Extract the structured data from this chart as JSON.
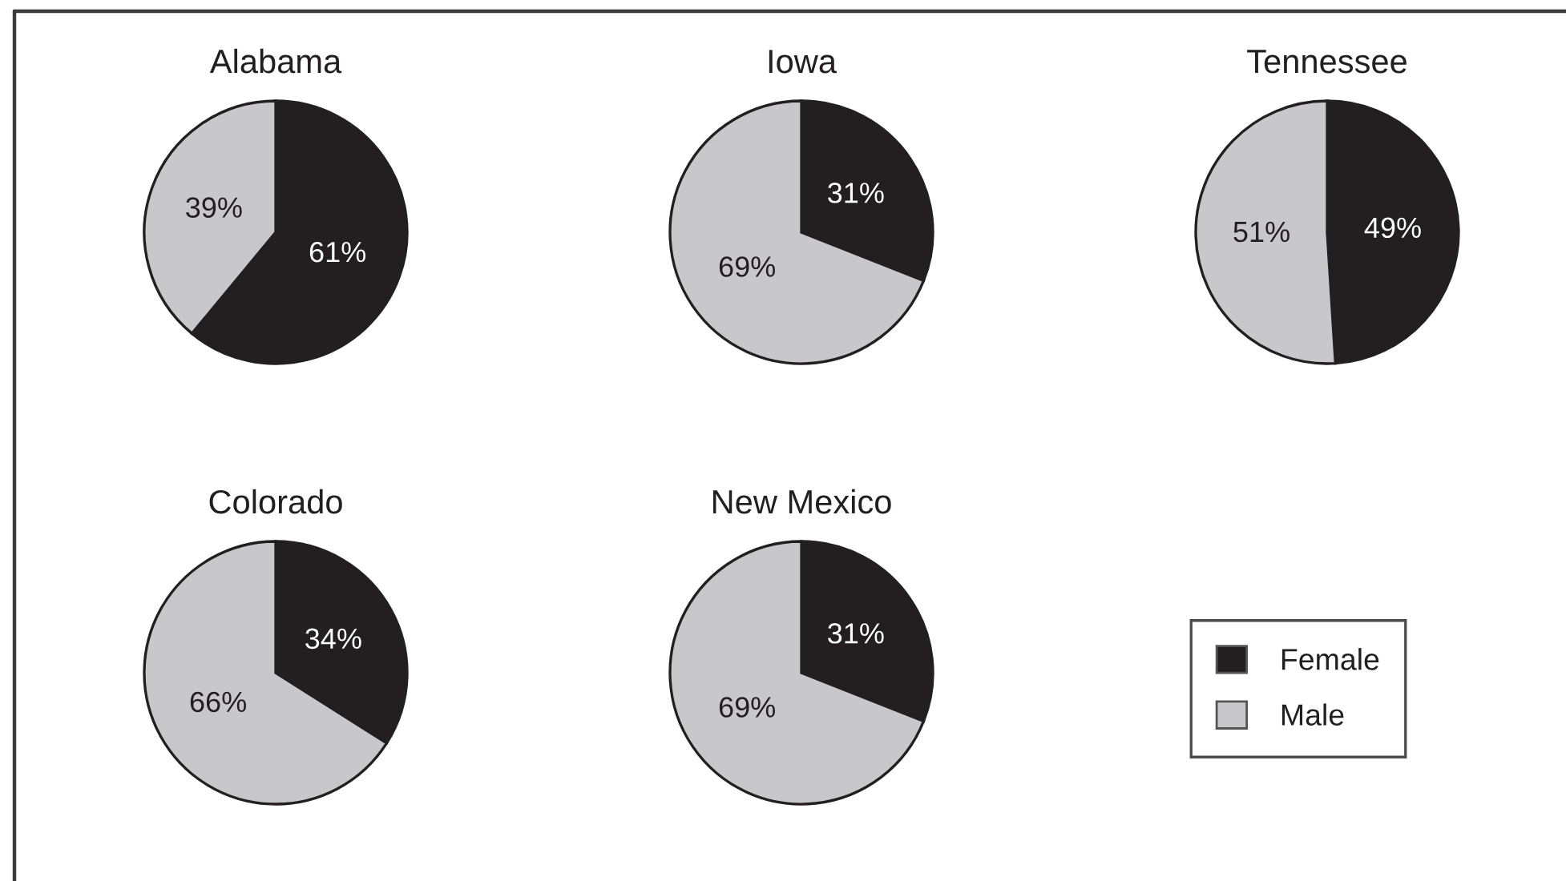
{
  "chart_data": [
    {
      "type": "pie",
      "title": "Alabama",
      "categories": [
        "Female",
        "Male"
      ],
      "values": [
        61,
        39
      ],
      "colors": [
        "#231f20",
        "#c8c8ca"
      ],
      "value_labels": [
        "61%",
        "39%"
      ],
      "legend": "bottom right"
    },
    {
      "type": "pie",
      "title": "Iowa",
      "categories": [
        null,
        null
      ],
      "values": [
        31,
        69
      ],
      "colors": [
        "#231f20",
        "#c8c8ca"
      ],
      "value_labels": [
        "31%",
        "69%"
      ]
    },
    {
      "type": "pie",
      "title": "Tennessee",
      "categories": [
        null,
        null
      ],
      "values": [
        49,
        51
      ],
      "colors": [
        "#231f20",
        "#c8c8ca"
      ],
      "value_labels": [
        "49%",
        "51%"
      ]
    },
    {
      "type": "pie",
      "title": "Colorado",
      "categories": [
        null,
        null
      ],
      "values": [
        34,
        66
      ],
      "colors": [
        "#231f20",
        "#c8c8ca"
      ],
      "value_labels": [
        "34%",
        "66%"
      ]
    },
    {
      "type": "pie",
      "title": "New Mexico",
      "categories": [
        null,
        null
      ],
      "values": [
        31,
        69
      ],
      "colors": [
        "#231f20",
        "#c8c8ca"
      ],
      "value_labels": [
        "31%",
        "69%"
      ]
    }
  ]
}
